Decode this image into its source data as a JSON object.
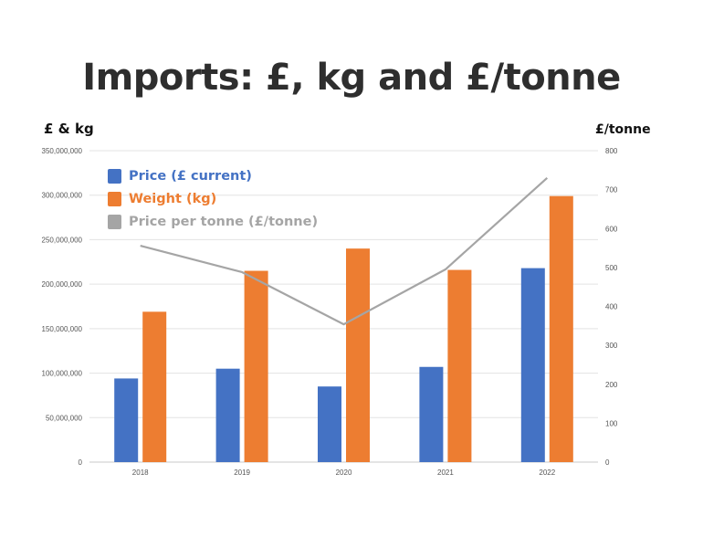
{
  "slide": {
    "title": "Imports: £, kg and £/tonne"
  },
  "colors": {
    "price": "#4472c4",
    "weight": "#ed7d31",
    "per_tonne": "#a5a5a5"
  },
  "chart_data": {
    "type": "bar",
    "categories": [
      "2018",
      "2019",
      "2020",
      "2021",
      "2022"
    ],
    "series": [
      {
        "name": "Price (£ current)",
        "axis": "left",
        "values": [
          94000000,
          105000000,
          85000000,
          107000000,
          218000000
        ]
      },
      {
        "name": "Weight (kg)",
        "axis": "left",
        "values": [
          169000000,
          215000000,
          240000000,
          216000000,
          299000000
        ]
      },
      {
        "name": "Price per tonne (£/tonne)",
        "axis": "right",
        "type": "line",
        "values": [
          556,
          488,
          354,
          495,
          730
        ]
      }
    ],
    "y_left": {
      "label": "£ & kg",
      "lim": [
        0,
        350000000
      ],
      "ticks": [
        "0",
        "50,000,000",
        "100,000,000",
        "150,000,000",
        "200,000,000",
        "250,000,000",
        "300,000,000",
        "350,000,000"
      ]
    },
    "y_right": {
      "label": "£/tonne",
      "lim": [
        0,
        800
      ],
      "ticks": [
        "0",
        "100",
        "200",
        "300",
        "400",
        "500",
        "600",
        "700",
        "800"
      ]
    },
    "grid": true,
    "legend": "top-left"
  }
}
